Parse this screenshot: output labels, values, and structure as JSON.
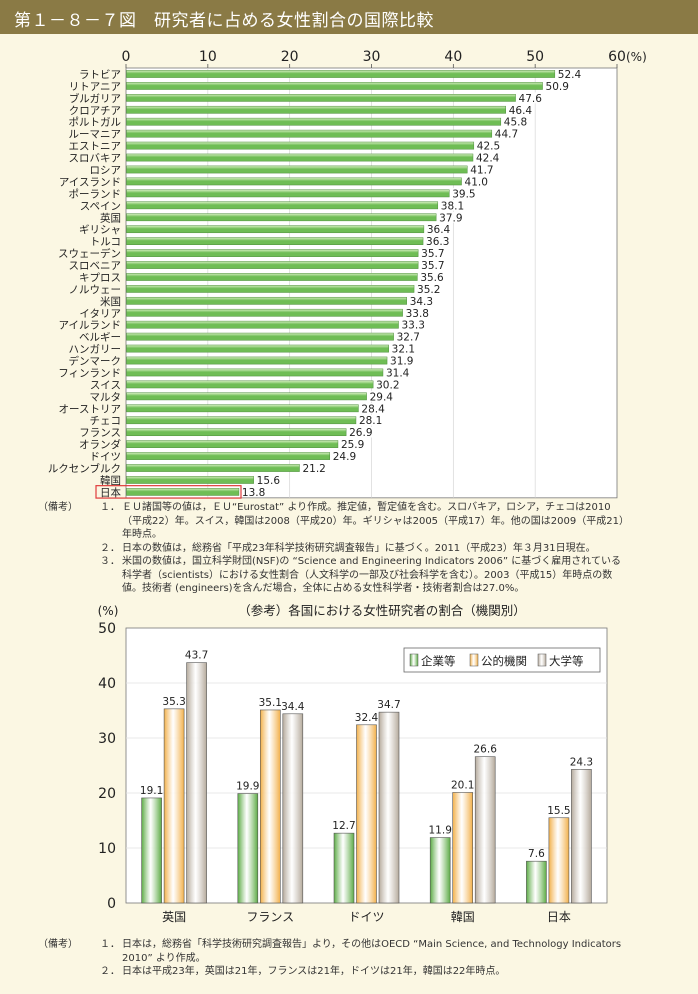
{
  "header": {
    "title": "第１－８－７図　研究者に占める女性割合の国際比較"
  },
  "chart_data": [
    {
      "type": "bar",
      "orientation": "horizontal",
      "title": "",
      "xlim": [
        0,
        60
      ],
      "ticks": [
        "0",
        "10",
        "20",
        "30",
        "40",
        "50",
        "60"
      ],
      "unit": "(%)",
      "highlight": "日本",
      "categories": [
        "ラトビア",
        "リトアニア",
        "ブルガリア",
        "クロアチア",
        "ポルトガル",
        "ルーマニア",
        "エストニア",
        "スロバキア",
        "ロシア",
        "アイスランド",
        "ポーランド",
        "スペイン",
        "英国",
        "ギリシャ",
        "トルコ",
        "スウェーデン",
        "スロベニア",
        "キプロス",
        "ノルウェー",
        "米国",
        "イタリア",
        "アイルランド",
        "ベルギー",
        "ハンガリー",
        "デンマーク",
        "フィンランド",
        "スイス",
        "マルタ",
        "オーストリア",
        "チェコ",
        "フランス",
        "オランダ",
        "ドイツ",
        "ルクセンブルク",
        "韓国",
        "日本"
      ],
      "values": [
        52.4,
        50.9,
        47.6,
        46.4,
        45.8,
        44.7,
        42.5,
        42.4,
        41.7,
        41.0,
        39.5,
        38.1,
        37.9,
        36.4,
        36.3,
        35.7,
        35.7,
        35.6,
        35.2,
        34.3,
        33.8,
        33.3,
        32.7,
        32.1,
        31.9,
        31.4,
        30.2,
        29.4,
        28.4,
        28.1,
        26.9,
        25.9,
        24.9,
        21.2,
        15.6,
        13.8
      ],
      "labels": [
        "52.4",
        "50.9",
        "47.6",
        "46.4",
        "45.8",
        "44.7",
        "42.5",
        "42.4",
        "41.7",
        "41.0",
        "39.5",
        "38.1",
        "37.9",
        "36.4",
        "36.3",
        "35.7",
        "35.7",
        "35.6",
        "35.2",
        "34.3",
        "33.8",
        "33.3",
        "32.7",
        "32.1",
        "31.9",
        "31.4",
        "30.2",
        "29.4",
        "28.4",
        "28.1",
        "26.9",
        "25.9",
        "24.9",
        "21.2",
        "15.6",
        "13.8"
      ],
      "colors": {
        "bar": "#6fbd55",
        "bar_light": "#d7f0c2",
        "highlight_box": "#e03b3b"
      }
    },
    {
      "type": "bar",
      "title": "（参考）各国における女性研究者の割合（機関別）",
      "ylabel": "(%)",
      "ylim": [
        0,
        50
      ],
      "yticks": [
        "0",
        "10",
        "20",
        "30",
        "40",
        "50"
      ],
      "categories": [
        "英国",
        "フランス",
        "ドイツ",
        "韓国",
        "日本"
      ],
      "legend_position": "top-right",
      "series": [
        {
          "name": "企業等",
          "values": [
            19.1,
            19.9,
            12.7,
            11.9,
            7.6
          ],
          "labels": [
            "19.1",
            "19.9",
            "12.7",
            "11.9",
            "7.6"
          ],
          "color": "#5cab45"
        },
        {
          "name": "公的機関",
          "values": [
            35.3,
            35.1,
            32.4,
            20.1,
            15.5
          ],
          "labels": [
            "35.3",
            "35.1",
            "32.4",
            "20.1",
            "15.5"
          ],
          "color": "#f2b04a"
        },
        {
          "name": "大学等",
          "values": [
            43.7,
            34.4,
            34.7,
            26.6,
            24.3
          ],
          "labels": [
            "43.7",
            "34.4",
            "34.7",
            "26.6",
            "24.3"
          ],
          "color": "#b5aa9c"
        }
      ]
    }
  ],
  "notes1": {
    "head": "（備考）",
    "items": [
      {
        "num": "１．",
        "text": "ＥＵ諸国等の値は，ＥＵ“Eurostat” より作成。推定値，暫定値を含む。スロバキア，ロシア，チェコは2010（平成22）年。スイス，韓国は2008（平成20）年。ギリシャは2005（平成17）年。他の国は2009（平成21）年時点。"
      },
      {
        "num": "２．",
        "text": "日本の数値は，総務省「平成23年科学技術研究調査報告」に基づく。2011（平成23）年３月31日現在。"
      },
      {
        "num": "３．",
        "text": "米国の数値は，国立科学財団(NSF)の “Science and Engineering Indicators 2006” に基づく雇用されている科学者（scientists）における女性割合（人文科学の一部及び社会科学を含む）。2003（平成15）年時点の数値。技術者 (engineers)を含んだ場合，全体に占める女性科学者・技術者割合は27.0%。"
      }
    ]
  },
  "notes2": {
    "head": "（備考）",
    "items": [
      {
        "num": "１．",
        "text": "日本は，総務省「科学技術研究調査報告」より，その他はOECD “Main Science, and Technology Indicators 2010” より作成。"
      },
      {
        "num": "２．",
        "text": "日本は平成23年，英国は21年，フランスは21年，ドイツは21年，韓国は22年時点。"
      }
    ]
  }
}
